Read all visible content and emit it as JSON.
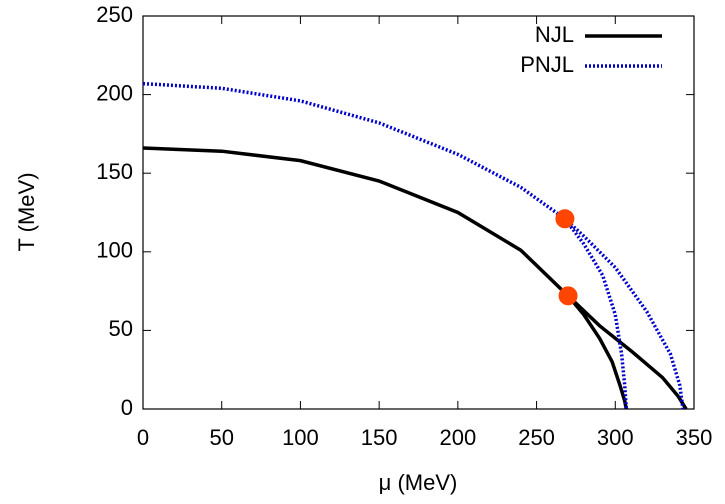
{
  "chart_data": {
    "type": "line",
    "xlabel": "μ (MeV)",
    "ylabel": "T (MeV)",
    "xlim": [
      0,
      350
    ],
    "xticks": [
      0,
      50,
      100,
      150,
      200,
      250,
      300,
      350
    ],
    "ylim": [
      0,
      250
    ],
    "yticks": [
      0,
      50,
      100,
      150,
      200,
      250
    ],
    "legend": "upper right",
    "series": [
      {
        "name": "NJL",
        "color": "#000000",
        "style": "solid",
        "x": [
          0,
          50,
          100,
          150,
          200,
          240,
          270,
          280,
          290,
          298,
          303,
          306,
          307,
          null,
          270,
          290,
          310,
          330,
          340,
          345
        ],
        "values": [
          166,
          164,
          158,
          145,
          125,
          101,
          72,
          60,
          45,
          30,
          15,
          5,
          0,
          null,
          72,
          53,
          37,
          20,
          8,
          0
        ]
      },
      {
        "name": "PNJL",
        "color": "#0000cc",
        "style": "dotted",
        "x": [
          0,
          50,
          100,
          150,
          200,
          240,
          268,
          280,
          292,
          300,
          304,
          306,
          307,
          null,
          268,
          280,
          300,
          320,
          335,
          341,
          343
        ],
        "values": [
          207,
          204,
          196,
          182,
          162,
          141,
          121,
          105,
          85,
          60,
          35,
          15,
          0,
          null,
          121,
          110,
          90,
          62,
          35,
          15,
          0
        ]
      }
    ],
    "points": {
      "color": "#ff4500",
      "x": [
        268,
        270
      ],
      "values": [
        121,
        72
      ]
    }
  }
}
